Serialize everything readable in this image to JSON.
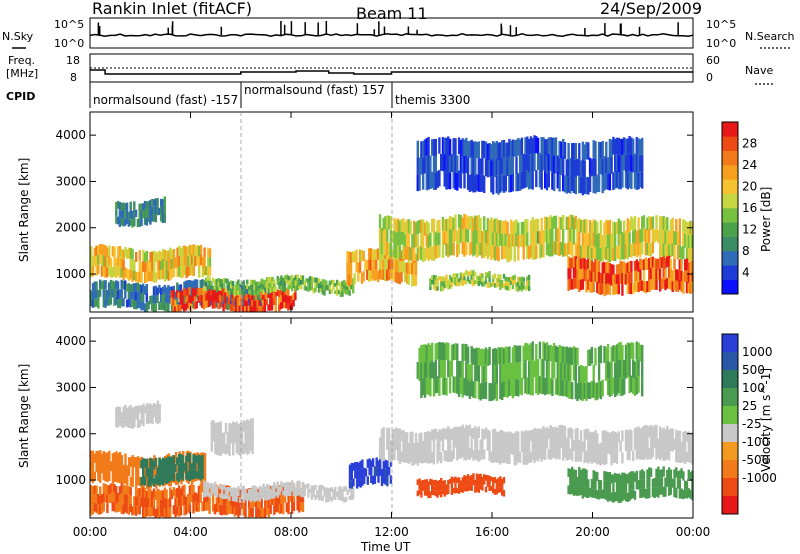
{
  "header": {
    "station": "Rankin Inlet (fitACF)",
    "beam": "Beam 11",
    "date": "24/Sep/2009"
  },
  "noise_panel": {
    "left_label": "N.Sky",
    "right_label": "N.Search",
    "left_ticks": [
      "10^5",
      "10^0"
    ],
    "right_ticks": [
      "10^5",
      "10^0"
    ]
  },
  "freq_panel": {
    "left_label_1": "Freq.",
    "left_label_2": "[MHz]",
    "right_label": "Nave",
    "left_ticks": [
      "18",
      "8"
    ],
    "right_ticks": [
      "60",
      "0"
    ]
  },
  "cpid": {
    "label": "CPID",
    "modes": [
      {
        "text": "normalsound (fast) -157",
        "start": "00:00"
      },
      {
        "text": "normalsound (fast) 157",
        "start": "06:00"
      },
      {
        "text": "themis 3300",
        "start": "12:00"
      }
    ]
  },
  "x_axis": {
    "label": "Time UT",
    "ticks": [
      "00:00",
      "04:00",
      "08:00",
      "12:00",
      "16:00",
      "20:00",
      "00:00"
    ],
    "range_hours": [
      0,
      24
    ]
  },
  "colors": {
    "power": [
      "#0a10ff",
      "#1e3bd6",
      "#2f6bb6",
      "#3c8c66",
      "#4ca24a",
      "#78c040",
      "#c6d640",
      "#f6c232",
      "#f7a020",
      "#f27a18",
      "#ee4a14",
      "#e8181a"
    ],
    "velocity": [
      "#2a3fd8",
      "#2a56a8",
      "#2f7a5a",
      "#4a9a50",
      "#6ac040",
      "#c8c8c8",
      "#f29a20",
      "#f27a18",
      "#ee4a14",
      "#e8181a"
    ]
  },
  "chart_data": [
    {
      "type": "heatmap",
      "name": "power",
      "ylabel": "Slant Range [km]",
      "ylim": [
        180,
        4500
      ],
      "yticks": [
        1000,
        2000,
        3000,
        4000
      ],
      "colorbar_label": "Power [dB]",
      "colorbar_ticks": [
        "4",
        "8",
        "12",
        "16",
        "20",
        "24",
        "28"
      ],
      "colorbar_range": [
        0,
        32
      ],
      "bands": [
        {
          "t0": 0.0,
          "t1": 4.8,
          "r0": 900,
          "r1": 1550,
          "level": 20
        },
        {
          "t0": 1.0,
          "t1": 3.0,
          "r0": 2100,
          "r1": 2600,
          "level": 9
        },
        {
          "t0": 0.0,
          "t1": 7.0,
          "r0": 250,
          "r1": 800,
          "level": 8
        },
        {
          "t0": 3.2,
          "t1": 8.2,
          "r0": 200,
          "r1": 650,
          "level": 29
        },
        {
          "t0": 4.5,
          "t1": 10.5,
          "r0": 600,
          "r1": 900,
          "level": 14
        },
        {
          "t0": 10.2,
          "t1": 13.0,
          "r0": 800,
          "r1": 1500,
          "level": 22
        },
        {
          "t0": 11.5,
          "t1": 24.0,
          "r0": 1350,
          "r1": 2200,
          "level": 18
        },
        {
          "t0": 13.5,
          "t1": 17.5,
          "r0": 700,
          "r1": 1000,
          "level": 16
        },
        {
          "t0": 19.0,
          "t1": 24.0,
          "r0": 600,
          "r1": 1300,
          "level": 27
        },
        {
          "t0": 13.0,
          "t1": 22.0,
          "r0": 2800,
          "r1": 3900,
          "level": 5
        }
      ]
    },
    {
      "type": "heatmap",
      "name": "velocity",
      "ylabel": "Slant Range [km]",
      "ylim": [
        180,
        4500
      ],
      "yticks": [
        1000,
        2000,
        3000,
        4000
      ],
      "colorbar_label": "Velocity [m s^-1]",
      "colorbar_ticks": [
        "1000",
        "500",
        "100",
        "25",
        "-25",
        "-100",
        "-500",
        "-1000"
      ],
      "bands": [
        {
          "t0": 0.0,
          "t1": 4.6,
          "r0": 900,
          "r1": 1550,
          "level": -250
        },
        {
          "t0": 2.0,
          "t1": 4.5,
          "r0": 950,
          "r1": 1500,
          "level": 300
        },
        {
          "t0": 1.0,
          "t1": 2.8,
          "r0": 2200,
          "r1": 2650,
          "level": 0
        },
        {
          "t0": 4.8,
          "t1": 6.5,
          "r0": 1600,
          "r1": 2300,
          "level": 0
        },
        {
          "t0": 0.0,
          "t1": 8.5,
          "r0": 250,
          "r1": 850,
          "level": -300
        },
        {
          "t0": 4.5,
          "t1": 10.5,
          "r0": 600,
          "r1": 900,
          "level": 10
        },
        {
          "t0": 10.3,
          "t1": 12.0,
          "r0": 850,
          "r1": 1400,
          "level": 900
        },
        {
          "t0": 11.5,
          "t1": 24.0,
          "r0": 1400,
          "r1": 2100,
          "level": 0
        },
        {
          "t0": 13.0,
          "t1": 16.5,
          "r0": 700,
          "r1": 1050,
          "level": -400
        },
        {
          "t0": 19.0,
          "t1": 24.0,
          "r0": 600,
          "r1": 1200,
          "level": 80
        },
        {
          "t0": 13.0,
          "t1": 22.0,
          "r0": 2800,
          "r1": 3900,
          "level": 60
        }
      ]
    }
  ]
}
